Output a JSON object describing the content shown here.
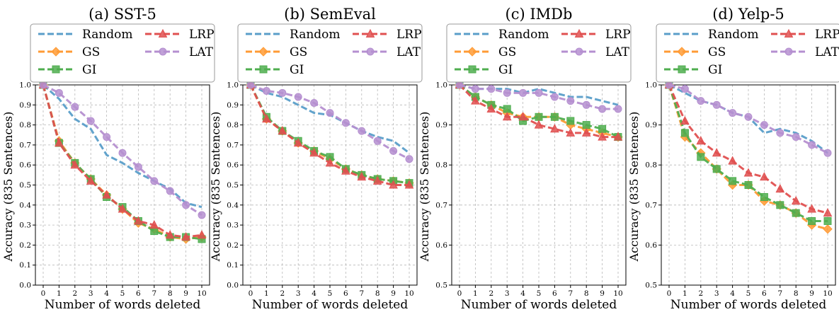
{
  "figure": {
    "xlabel": "Number of words deleted",
    "ylabel": "Accuracy (835 Sentences)"
  },
  "colors": {
    "Random": "#5a9ec9",
    "GS": "#ff9b35",
    "GI": "#4fae4f",
    "LRP": "#e05050",
    "LAT": "#b58fd0"
  },
  "chart_data": [
    {
      "type": "line",
      "title": "(a) SST-5",
      "xlabel": "Number of words deleted",
      "ylabel": "Accuracy (835 Sentences)",
      "x": [
        0,
        1,
        2,
        3,
        4,
        5,
        6,
        7,
        8,
        9,
        10
      ],
      "xticks": [
        "0",
        "1",
        "2",
        "3",
        "4",
        "5",
        "6",
        "7",
        "8",
        "9",
        "10"
      ],
      "ylim": [
        0,
        1.0
      ],
      "yticks": [
        "0.0",
        "0.1",
        "0.2",
        "0.3",
        "0.4",
        "0.5",
        "0.6",
        "0.7",
        "0.8",
        "0.9",
        "1.0"
      ],
      "grid": true,
      "legend": "top",
      "series": [
        {
          "name": "Random",
          "marker": "none",
          "values": [
            1.0,
            0.93,
            0.83,
            0.78,
            0.65,
            0.61,
            0.56,
            0.52,
            0.48,
            0.41,
            0.39
          ]
        },
        {
          "name": "GS",
          "marker": "diamond",
          "values": [
            1.0,
            0.72,
            0.61,
            0.53,
            0.45,
            0.38,
            0.31,
            0.28,
            0.24,
            0.23,
            0.24
          ]
        },
        {
          "name": "GI",
          "marker": "square",
          "values": [
            1.0,
            0.71,
            0.61,
            0.53,
            0.44,
            0.39,
            0.32,
            0.27,
            0.24,
            0.24,
            0.23
          ]
        },
        {
          "name": "LRP",
          "marker": "triangle",
          "values": [
            1.0,
            0.71,
            0.6,
            0.52,
            0.45,
            0.38,
            0.32,
            0.3,
            0.25,
            0.24,
            0.25
          ]
        },
        {
          "name": "LAT",
          "marker": "circle",
          "values": [
            1.0,
            0.96,
            0.89,
            0.82,
            0.74,
            0.66,
            0.59,
            0.52,
            0.47,
            0.4,
            0.35
          ]
        }
      ]
    },
    {
      "type": "line",
      "title": "(b) SemEval",
      "xlabel": "Number of words deleted",
      "ylabel": "Accuracy (835 Sentences)",
      "x": [
        0,
        1,
        2,
        3,
        4,
        5,
        6,
        7,
        8,
        9,
        10
      ],
      "xticks": [
        "0",
        "1",
        "2",
        "3",
        "4",
        "5",
        "6",
        "7",
        "8",
        "9",
        "10"
      ],
      "ylim": [
        0,
        1.0
      ],
      "yticks": [
        "0.0",
        "0.1",
        "0.2",
        "0.3",
        "0.4",
        "0.5",
        "0.6",
        "0.7",
        "0.8",
        "0.9",
        "1.0"
      ],
      "grid": true,
      "legend": "top",
      "series": [
        {
          "name": "Random",
          "marker": "none",
          "values": [
            1.0,
            0.96,
            0.94,
            0.9,
            0.86,
            0.85,
            0.81,
            0.77,
            0.74,
            0.72,
            0.66
          ]
        },
        {
          "name": "GS",
          "marker": "diamond",
          "values": [
            1.0,
            0.83,
            0.77,
            0.71,
            0.67,
            0.63,
            0.58,
            0.55,
            0.53,
            0.52,
            0.51
          ]
        },
        {
          "name": "GI",
          "marker": "square",
          "values": [
            1.0,
            0.84,
            0.77,
            0.72,
            0.67,
            0.64,
            0.58,
            0.55,
            0.53,
            0.52,
            0.51
          ]
        },
        {
          "name": "LRP",
          "marker": "triangle",
          "values": [
            1.0,
            0.83,
            0.77,
            0.71,
            0.66,
            0.61,
            0.57,
            0.54,
            0.52,
            0.5,
            0.5
          ]
        },
        {
          "name": "LAT",
          "marker": "circle",
          "values": [
            1.0,
            0.97,
            0.96,
            0.94,
            0.91,
            0.86,
            0.81,
            0.77,
            0.72,
            0.67,
            0.63
          ]
        }
      ]
    },
    {
      "type": "line",
      "title": "(c) IMDb",
      "xlabel": "Number of words deleted",
      "ylabel": "Accuracy (835 Sentences)",
      "x": [
        0,
        1,
        2,
        3,
        4,
        5,
        6,
        7,
        8,
        9,
        10
      ],
      "xticks": [
        "0",
        "1",
        "2",
        "3",
        "4",
        "5",
        "6",
        "7",
        "8",
        "9",
        "10"
      ],
      "ylim": [
        0.5,
        1.0
      ],
      "yticks": [
        "0.5",
        "0.6",
        "0.7",
        "0.8",
        "0.9",
        "1.0"
      ],
      "grid": true,
      "legend": "top",
      "series": [
        {
          "name": "Random",
          "marker": "none",
          "values": [
            1.0,
            0.99,
            0.99,
            0.99,
            0.98,
            0.99,
            0.98,
            0.97,
            0.97,
            0.96,
            0.95
          ]
        },
        {
          "name": "GS",
          "marker": "diamond",
          "values": [
            1.0,
            0.97,
            0.95,
            0.93,
            0.92,
            0.92,
            0.92,
            0.9,
            0.89,
            0.88,
            0.87
          ]
        },
        {
          "name": "GI",
          "marker": "square",
          "values": [
            1.0,
            0.97,
            0.95,
            0.94,
            0.91,
            0.92,
            0.92,
            0.91,
            0.9,
            0.89,
            0.87
          ]
        },
        {
          "name": "LRP",
          "marker": "triangle",
          "values": [
            1.0,
            0.96,
            0.94,
            0.92,
            0.92,
            0.9,
            0.89,
            0.88,
            0.88,
            0.87,
            0.87
          ]
        },
        {
          "name": "LAT",
          "marker": "circle",
          "values": [
            1.0,
            0.99,
            0.99,
            0.98,
            0.98,
            0.98,
            0.97,
            0.96,
            0.95,
            0.94,
            0.94
          ]
        }
      ]
    },
    {
      "type": "line",
      "title": "(d) Yelp-5",
      "xlabel": "Number of words deleted",
      "ylabel": "Accuracy (835 Sentences)",
      "x": [
        0,
        1,
        2,
        3,
        4,
        5,
        6,
        7,
        8,
        9,
        10
      ],
      "xticks": [
        "0",
        "1",
        "2",
        "3",
        "4",
        "5",
        "6",
        "7",
        "8",
        "9",
        "10"
      ],
      "ylim": [
        0.5,
        1.0
      ],
      "yticks": [
        "0.5",
        "0.6",
        "0.7",
        "0.8",
        "0.9",
        "1.0"
      ],
      "grid": true,
      "legend": "top",
      "series": [
        {
          "name": "Random",
          "marker": "none",
          "values": [
            1.0,
            0.98,
            0.96,
            0.95,
            0.93,
            0.92,
            0.88,
            0.89,
            0.88,
            0.86,
            0.83
          ]
        },
        {
          "name": "GS",
          "marker": "diamond",
          "values": [
            1.0,
            0.87,
            0.83,
            0.79,
            0.75,
            0.75,
            0.71,
            0.7,
            0.68,
            0.65,
            0.64
          ]
        },
        {
          "name": "GI",
          "marker": "square",
          "values": [
            1.0,
            0.88,
            0.82,
            0.79,
            0.76,
            0.75,
            0.72,
            0.7,
            0.68,
            0.66,
            0.66
          ]
        },
        {
          "name": "LRP",
          "marker": "triangle",
          "values": [
            1.0,
            0.91,
            0.86,
            0.83,
            0.81,
            0.78,
            0.77,
            0.74,
            0.71,
            0.69,
            0.68
          ]
        },
        {
          "name": "LAT",
          "marker": "circle",
          "values": [
            1.0,
            0.99,
            0.96,
            0.95,
            0.93,
            0.92,
            0.9,
            0.88,
            0.87,
            0.85,
            0.83
          ]
        }
      ]
    }
  ]
}
